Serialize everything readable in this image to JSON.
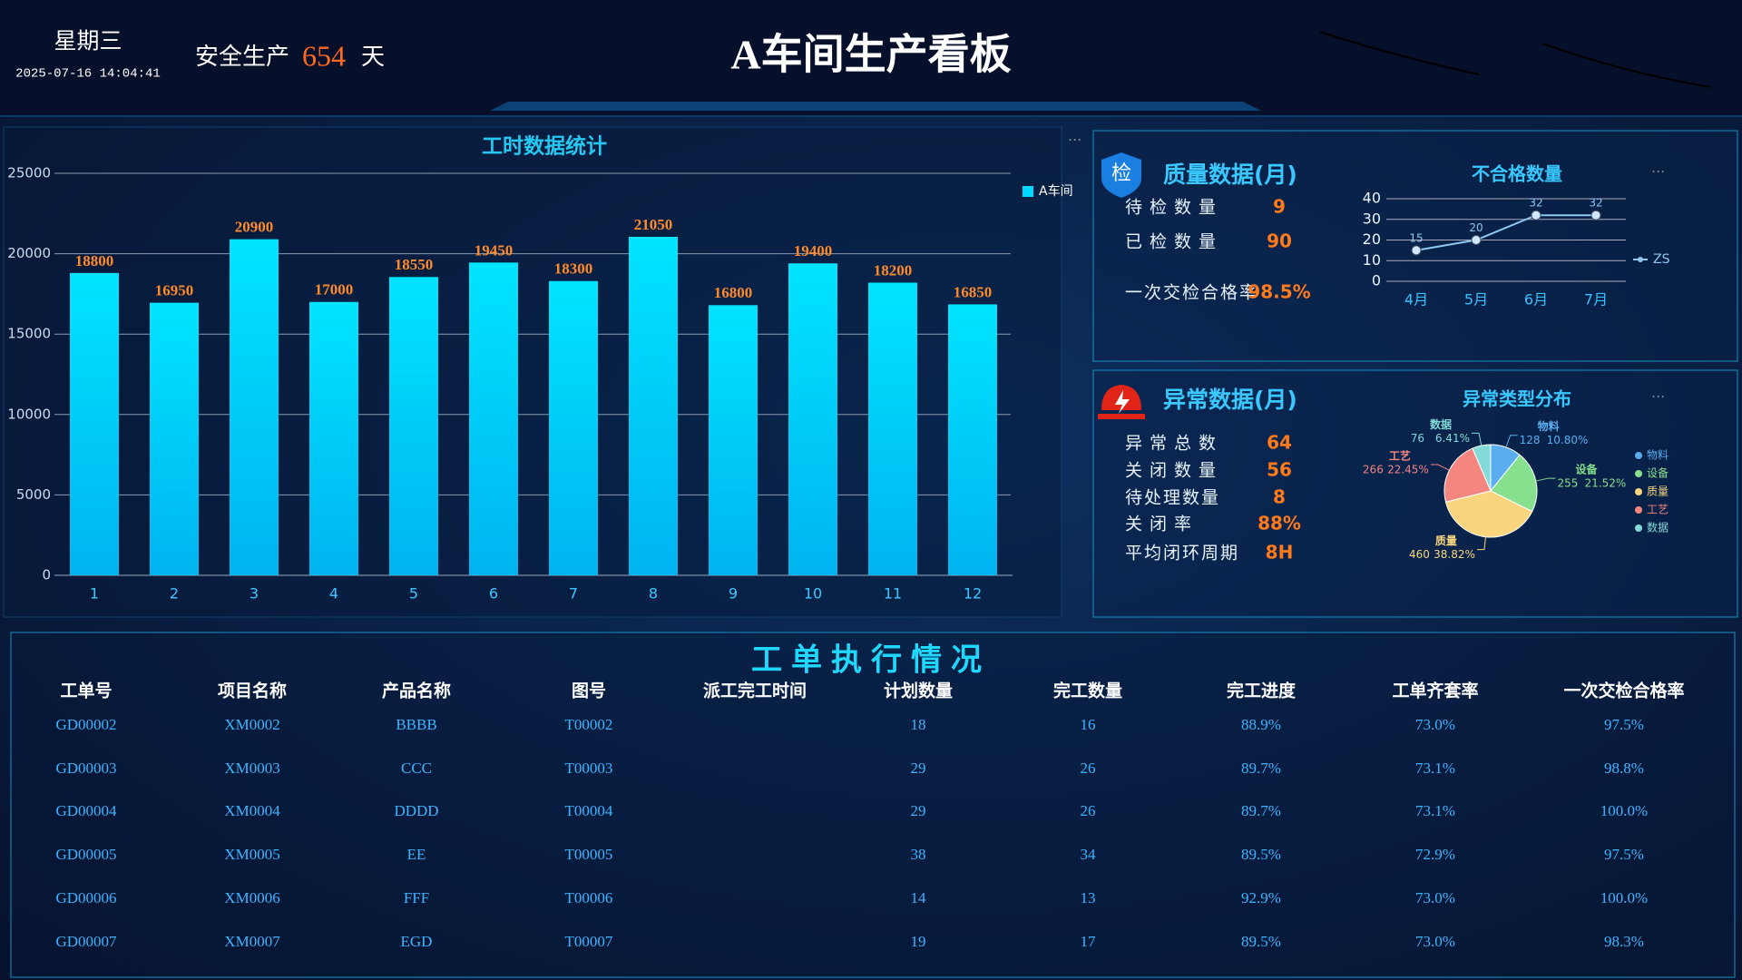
{
  "header": {
    "weekday": "星期三",
    "datetime": "2025-07-16 14:04:41",
    "safety_label": "安全生产",
    "safety_days": 654,
    "days_unit": "天",
    "title": "A车间生产看板"
  },
  "chart_data": [
    {
      "type": "bar",
      "title": "工时数据统计",
      "categories": [
        "1",
        "2",
        "3",
        "4",
        "5",
        "6",
        "7",
        "8",
        "9",
        "10",
        "11",
        "12"
      ],
      "series": [
        {
          "name": "A车间",
          "color": "#00d8ff",
          "values": [
            18800,
            16950,
            20900,
            17000,
            18550,
            19450,
            18300,
            21050,
            16800,
            19400,
            18200,
            16850
          ]
        }
      ],
      "ylim": [
        0,
        25000
      ],
      "yticks": [
        0,
        5000,
        10000,
        15000,
        20000,
        25000
      ],
      "grid": true
    },
    {
      "type": "line",
      "title": "不合格数量",
      "categories": [
        "4月",
        "5月",
        "6月",
        "7月"
      ],
      "series": [
        {
          "name": "ZS",
          "color": "#8ec8f0",
          "values": [
            15,
            20,
            32,
            32
          ]
        }
      ],
      "ylim": [
        0,
        40
      ],
      "yticks": [
        0,
        10,
        20,
        30,
        40
      ],
      "grid": true
    },
    {
      "type": "pie",
      "title": "异常类型分布",
      "categories": [
        "物料",
        "设备",
        "质量",
        "工艺",
        "数据"
      ],
      "values": [
        128,
        255,
        460,
        266,
        76
      ],
      "percent_labels": [
        "10.80%",
        "21.52%",
        "38.82%",
        "22.45%",
        "6.41%"
      ],
      "colors": [
        "#5aaef0",
        "#86e08e",
        "#f9d67e",
        "#f4857f",
        "#84dad8"
      ]
    }
  ],
  "quality": {
    "icon": "检",
    "title": "质量数据(月)",
    "items": [
      {
        "label": "待检数量",
        "value": 9
      },
      {
        "label": "已检数量",
        "value": 90
      },
      {
        "label": "一次交检合格率",
        "value": "98.5%"
      }
    ]
  },
  "abnormal": {
    "title": "异常数据(月)",
    "items": [
      {
        "label": "异常总数",
        "value": 64
      },
      {
        "label": "关闭数量",
        "value": 56
      },
      {
        "label": "待处理数量",
        "value": 8
      },
      {
        "label": "关闭率",
        "value": "88%"
      },
      {
        "label": "平均闭环周期",
        "value": "8H"
      }
    ]
  },
  "table": {
    "title": "工单执行情况",
    "columns": [
      "工单号",
      "项目名称",
      "产品名称",
      "图号",
      "派工完工时间",
      "计划数量",
      "完工数量",
      "完工进度",
      "工单齐套率",
      "一次交检合格率"
    ],
    "rows": [
      [
        "GD00002",
        "XM0002",
        "BBBB",
        "T00002",
        null,
        18,
        16,
        "88.9%",
        "73.0%",
        "97.5%"
      ],
      [
        "GD00003",
        "XM0003",
        "CCC",
        "T00003",
        null,
        29,
        26,
        "89.7%",
        "73.1%",
        "98.8%"
      ],
      [
        "GD00004",
        "XM0004",
        "DDDD",
        "T00004",
        null,
        29,
        26,
        "89.7%",
        "73.1%",
        "100.0%"
      ],
      [
        "GD00005",
        "XM0005",
        "EE",
        "T00005",
        null,
        38,
        34,
        "89.5%",
        "72.9%",
        "97.5%"
      ],
      [
        "GD00006",
        "XM0006",
        "FFF",
        "T00006",
        null,
        14,
        13,
        "92.9%",
        "73.0%",
        "100.0%"
      ],
      [
        "GD00007",
        "XM0007",
        "EGD",
        "T00007",
        null,
        19,
        17,
        "89.5%",
        "73.0%",
        "98.3%"
      ]
    ]
  }
}
